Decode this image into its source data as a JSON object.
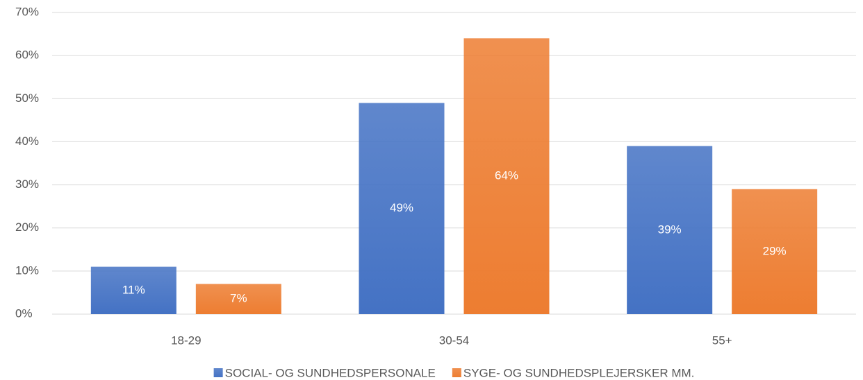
{
  "chart_data": {
    "type": "bar",
    "categories": [
      "18-29",
      "30-54",
      "55+"
    ],
    "series": [
      {
        "name": "SOCIAL- OG SUNDHEDSPERSONALE",
        "color": "#4472c4",
        "values": [
          11,
          49,
          39
        ],
        "value_labels": [
          "11%",
          "49%",
          "39%"
        ]
      },
      {
        "name": "SYGE- OG SUNDHEDSPLEJERSKER MM.",
        "color": "#ed7d31",
        "values": [
          7,
          64,
          29
        ],
        "value_labels": [
          "7%",
          "64%",
          "29%"
        ]
      }
    ],
    "ylim": [
      0,
      70
    ],
    "yticks": [
      {
        "value": 0,
        "label": "0%"
      },
      {
        "value": 10,
        "label": "10%"
      },
      {
        "value": 20,
        "label": "20%"
      },
      {
        "value": 30,
        "label": "30%"
      },
      {
        "value": 40,
        "label": "40%"
      },
      {
        "value": 50,
        "label": "50%"
      },
      {
        "value": 60,
        "label": "60%"
      },
      {
        "value": 70,
        "label": "70%"
      }
    ],
    "grid": true,
    "legend": "bottom"
  }
}
